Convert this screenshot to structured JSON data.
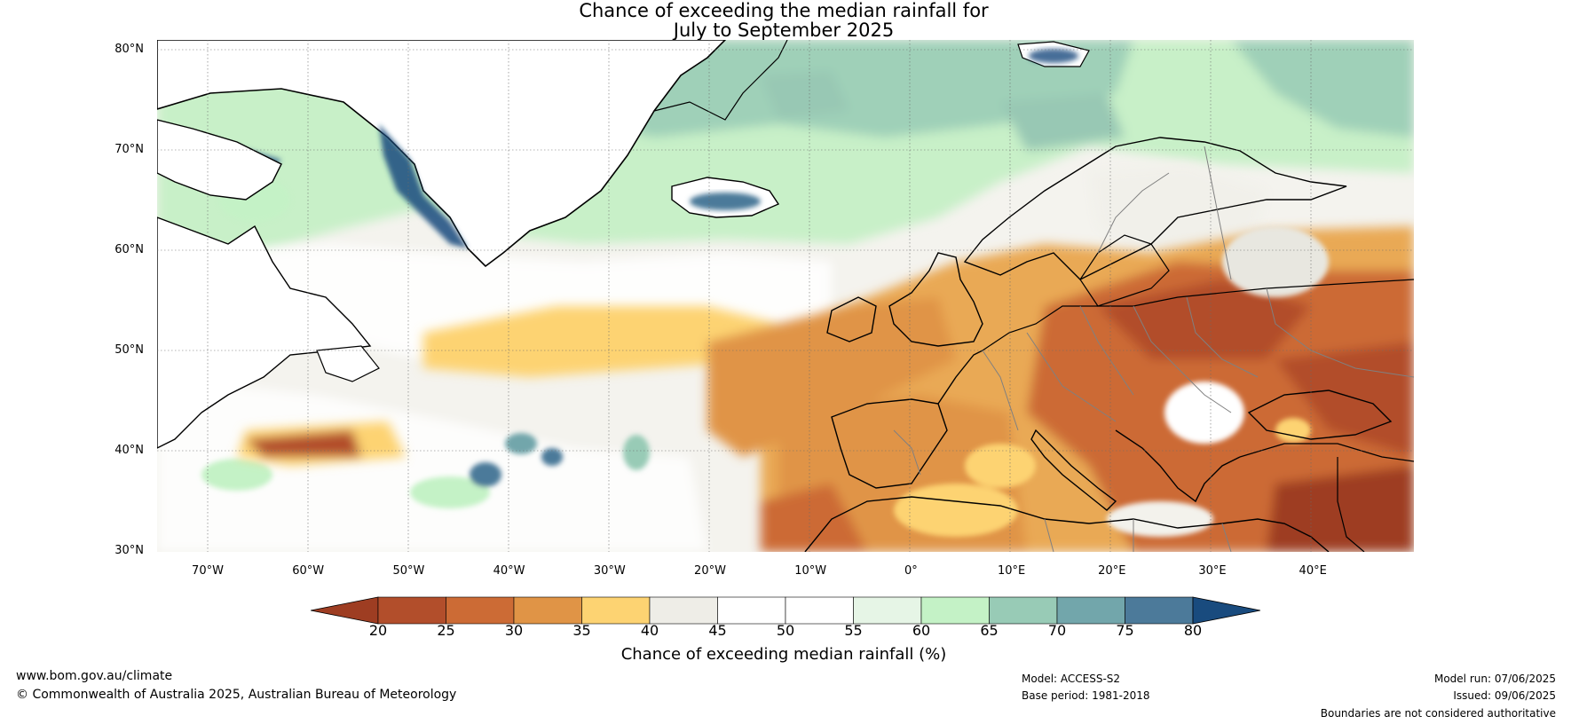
{
  "title_line1": "Chance of exceeding the median rainfall for",
  "title_line2": "July to September 2025",
  "map": {
    "projection": "equirectangular",
    "lon_range": [
      -75,
      50
    ],
    "lat_range": [
      30,
      81
    ],
    "grid": true,
    "lat_ticks": [
      "80°N",
      "70°N",
      "60°N",
      "50°N",
      "40°N",
      "30°N"
    ],
    "lon_ticks": [
      "70°W",
      "60°W",
      "50°W",
      "40°W",
      "30°W",
      "20°W",
      "10°W",
      "0°",
      "10°E",
      "20°E",
      "30°E",
      "40°E"
    ],
    "summary": {
      "arctic_greenland_iceland": "wetter (55-75%)",
      "north_atlantic": "near median (40-60%)",
      "europe_mediterranean": "drier (20-40%)"
    }
  },
  "colorbar": {
    "ticks": [
      "20",
      "25",
      "30",
      "35",
      "40",
      "45",
      "50",
      "55",
      "60",
      "65",
      "70",
      "75",
      "80"
    ],
    "colors": [
      "#9e3d22",
      "#b24e2b",
      "#cc6b35",
      "#e09446",
      "#fdd372",
      "#eeede7",
      "#ffffff",
      "#ffffff",
      "#e6f5e6",
      "#c4f2c6",
      "#98cbb6",
      "#72a6ab",
      "#4c7a9a",
      "#194b7e"
    ],
    "extend": "both",
    "label": "Chance of exceeding median rainfall (%)"
  },
  "footer": {
    "website": "www.bom.gov.au/climate",
    "copyright": "© Commonwealth of Australia 2025, Australian Bureau of Meteorology",
    "model": "Model: ACCESS-S2",
    "base_period": "Base period: 1981-2018",
    "model_run": "Model run: 07/06/2025",
    "issued": "Issued: 09/06/2025",
    "disclaimer": "Boundaries are not considered authoritative"
  }
}
